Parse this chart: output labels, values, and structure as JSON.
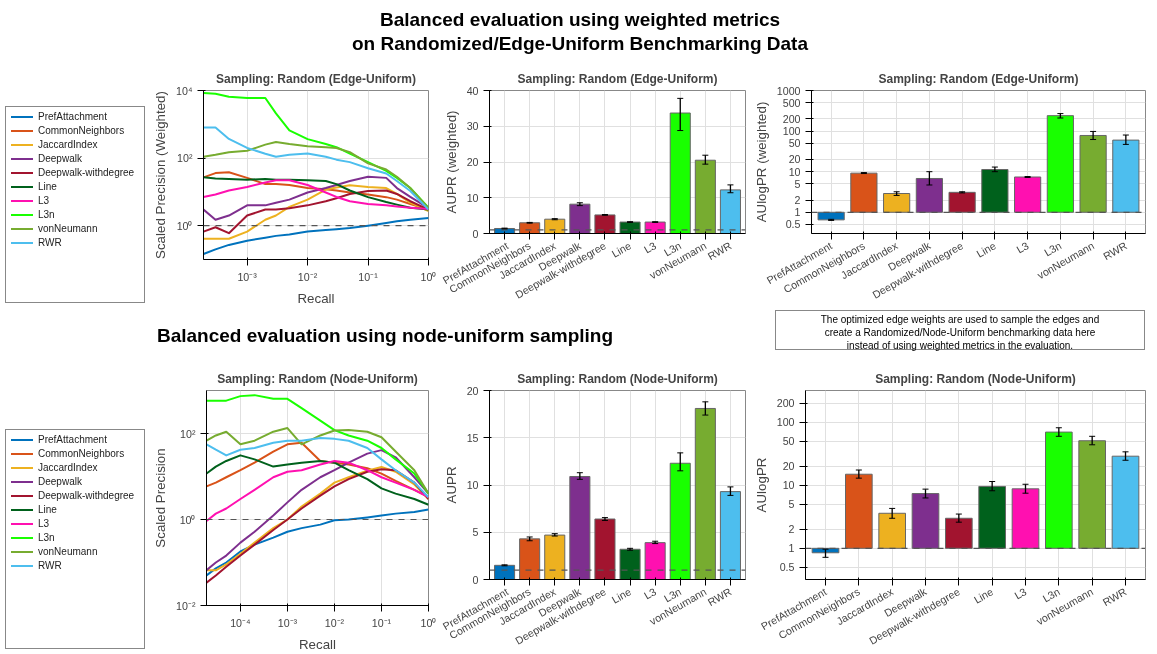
{
  "chart_data": [
    {
      "type": "line",
      "title": "Sampling: Random (Edge-Uniform)",
      "xlabel": "Recall",
      "ylabel": "Scaled Precision (Weighted)",
      "log": "xy",
      "grid": true,
      "legend": "left",
      "line_style": "solid",
      "xlim": [
        0.00019,
        1
      ],
      "ylim": [
        0.1,
        10000
      ],
      "xticks": [
        {
          "value": 0.001,
          "label": "10⁻³"
        },
        {
          "value": 0.01,
          "label": "10⁻²"
        },
        {
          "value": 0.1,
          "label": "10⁻¹"
        },
        {
          "value": 1,
          "label": "10⁰"
        }
      ],
      "yticks": [
        {
          "value": 1,
          "label": "10⁰"
        },
        {
          "value": 100,
          "label": "10²"
        },
        {
          "value": 10000,
          "label": "10⁴"
        }
      ],
      "x": [
        0.00019,
        0.0003,
        0.0005,
        0.001,
        0.002,
        0.003,
        0.005,
        0.01,
        0.02,
        0.03,
        0.05,
        0.1,
        0.2,
        0.3,
        0.5,
        1
      ],
      "ref_lines": [
        {
          "axis": "y",
          "value": 1,
          "color": "#555555",
          "line_style": "dashed"
        }
      ],
      "series": [
        {
          "name": "PrefAttachment",
          "color": "#0072bd",
          "values": [
            0.145,
            0.2,
            0.27,
            0.36,
            0.44,
            0.5,
            0.55,
            0.67,
            0.74,
            0.79,
            0.85,
            1,
            1.2,
            1.35,
            1.5,
            1.7
          ]
        },
        {
          "name": "CommonNeighbors",
          "color": "#d95319",
          "values": [
            27,
            36,
            38,
            26,
            17,
            17,
            16,
            13,
            12,
            11,
            9.6,
            8.4,
            7,
            5.9,
            4.4,
            3
          ]
        },
        {
          "name": "JaccardIndex",
          "color": "#edb120",
          "values": [
            0.41,
            0.41,
            0.41,
            0.67,
            1.5,
            2,
            3.6,
            5.9,
            11.7,
            13.4,
            15.7,
            14,
            13,
            8.7,
            4.8,
            2.7
          ]
        },
        {
          "name": "Deepwalk",
          "color": "#7e2f8e",
          "values": [
            3,
            1.5,
            2,
            4,
            4,
            4.8,
            5.9,
            9.6,
            13,
            16,
            21,
            28,
            26,
            13,
            7.1,
            3.3
          ]
        },
        {
          "name": "Deepwalk-withdegree",
          "color": "#a2142f",
          "values": [
            0.67,
            0.9,
            0.6,
            2,
            3,
            3,
            3.3,
            4,
            5.3,
            6.5,
            8.7,
            10.6,
            11,
            8.7,
            5.3,
            3
          ]
        },
        {
          "name": "Line",
          "color": "#00611c",
          "values": [
            27,
            25,
            24,
            23,
            24,
            23,
            23,
            22,
            21,
            17,
            11,
            7,
            5,
            4.2,
            3.4,
            3
          ]
        },
        {
          "name": "L3",
          "color": "#ff10b0",
          "values": [
            7.1,
            8.4,
            11,
            14,
            19,
            22,
            22,
            16,
            9.6,
            7.1,
            5.3,
            4.4,
            4,
            3.7,
            3.4,
            3.1
          ]
        },
        {
          "name": "L3n",
          "color": "#19ff00",
          "values": [
            8500,
            8000,
            6500,
            6000,
            6000,
            2100,
            660,
            365,
            260,
            210,
            137,
            76,
            42,
            26,
            13,
            3.4
          ]
        },
        {
          "name": "vonNeumann",
          "color": "#77ac30",
          "values": [
            110,
            125,
            150,
            165,
            250,
            300,
            260,
            225,
            210,
            200,
            150,
            70,
            46,
            28,
            13,
            3.3
          ]
        },
        {
          "name": "RWR",
          "color": "#4dbeee",
          "values": [
            800,
            800,
            370,
            200,
            135,
            110,
            125,
            137,
            110,
            90,
            76,
            50,
            35,
            21,
            10.6,
            3
          ]
        }
      ]
    },
    {
      "type": "bar",
      "title": "Sampling: Random (Edge-Uniform)",
      "ylabel": "AUPR (weighted)",
      "grid": true,
      "ylim": [
        0,
        40
      ],
      "yticks": [
        0,
        10,
        20,
        30,
        40
      ],
      "categories": [
        "PrefAttachment",
        "CommonNeighbors",
        "JaccardIndex",
        "Deepwalk",
        "Deepwalk-withdegree",
        "Line",
        "L3",
        "L3n",
        "vonNeumann",
        "RWR"
      ],
      "values": [
        1.4,
        3.0,
        4.0,
        8.2,
        5.2,
        3.2,
        3.2,
        33.7,
        20.5,
        12.2
      ],
      "errors": [
        [
          1.3,
          1.5
        ],
        [
          2.9,
          3.1
        ],
        [
          3.85,
          4.15
        ],
        [
          7.8,
          8.6
        ],
        [
          5.1,
          5.3
        ],
        [
          3.1,
          3.3
        ],
        [
          3.1,
          3.3
        ],
        [
          28.8,
          37.8
        ],
        [
          19.4,
          21.9
        ],
        [
          11.4,
          13.6
        ]
      ],
      "colors": [
        "#0072bd",
        "#d95319",
        "#edb120",
        "#7e2f8e",
        "#a2142f",
        "#00611c",
        "#ff10b0",
        "#19ff00",
        "#77ac30",
        "#4dbeee"
      ],
      "ref_lines": [
        {
          "axis": "y",
          "value": 1,
          "color": "#555555",
          "line_style": "dashed"
        }
      ]
    },
    {
      "type": "bar",
      "title": "Sampling: Random (Edge-Uniform)",
      "ylabel": "AUlogPR (weighted)",
      "grid": true,
      "log": true,
      "ylim": [
        0.3,
        1000
      ],
      "yticks": [
        0.5,
        1,
        2,
        5,
        10,
        20,
        50,
        100,
        200,
        500,
        1000
      ],
      "categories": [
        "PrefAttachment",
        "CommonNeighbors",
        "JaccardIndex",
        "Deepwalk",
        "Deepwalk-withdegree",
        "Line",
        "L3",
        "L3n",
        "vonNeumann",
        "RWR"
      ],
      "base": [
        1,
        1,
        1,
        1,
        1,
        1,
        1,
        1,
        1,
        1
      ],
      "values": [
        -0.35,
        8.2,
        1.9,
        5.8,
        2.1,
        10.3,
        6.4,
        239,
        77,
        59
      ],
      "errors": [
        [
          0.63,
          0.67
        ],
        [
          9.0,
          9.5
        ],
        [
          2.6,
          3.2
        ],
        [
          4.7,
          10
        ],
        [
          3.0,
          3.2
        ],
        [
          10,
          13
        ],
        [
          7.2,
          7.6
        ],
        [
          210,
          270
        ],
        [
          62,
          98
        ],
        [
          47,
          80
        ]
      ],
      "colors": [
        "#0072bd",
        "#d95319",
        "#edb120",
        "#7e2f8e",
        "#a2142f",
        "#00611c",
        "#ff10b0",
        "#19ff00",
        "#77ac30",
        "#4dbeee"
      ],
      "ref_lines": [
        {
          "axis": "y",
          "value": 1,
          "color": "#555555",
          "line_style": "dashed"
        }
      ]
    },
    {
      "type": "line",
      "title": "Sampling: Random (Node-Uniform)",
      "xlabel": "Recall",
      "ylabel": "Scaled Precision",
      "log": "xy",
      "grid": true,
      "legend": "left",
      "line_style": "solid",
      "xlim": [
        1.9e-05,
        1
      ],
      "ylim": [
        0.01,
        1000
      ],
      "xticks": [
        {
          "value": 0.0001,
          "label": "10⁻⁴"
        },
        {
          "value": 0.001,
          "label": "10⁻³"
        },
        {
          "value": 0.01,
          "label": "10⁻²"
        },
        {
          "value": 0.1,
          "label": "10⁻¹"
        },
        {
          "value": 1,
          "label": "10⁰"
        }
      ],
      "yticks": [
        {
          "value": 0.01,
          "label": "10⁻²"
        },
        {
          "value": 1,
          "label": "10⁰"
        },
        {
          "value": 100,
          "label": "10²"
        }
      ],
      "x": [
        1.9e-05,
        3e-05,
        5e-05,
        0.0001,
        0.0002,
        0.0005,
        0.001,
        0.002,
        0.005,
        0.01,
        0.02,
        0.05,
        0.1,
        0.2,
        0.5,
        1
      ],
      "ref_lines": [
        {
          "axis": "y",
          "value": 1,
          "color": "#555555",
          "line_style": "dashed"
        }
      ],
      "series": [
        {
          "name": "PrefAttachment",
          "color": "#0072bd",
          "values": [
            0.05,
            0.073,
            0.1,
            0.18,
            0.26,
            0.38,
            0.52,
            0.63,
            0.76,
            0.96,
            1,
            1.12,
            1.24,
            1.37,
            1.5,
            1.7
          ]
        },
        {
          "name": "CommonNeighbors",
          "color": "#d95319",
          "values": [
            5.9,
            7.2,
            9.6,
            14,
            21,
            38,
            56,
            61,
            23,
            21,
            19,
            15.6,
            11.7,
            7.9,
            4.9,
            3.3
          ]
        },
        {
          "name": "JaccardIndex",
          "color": "#edb120",
          "values": [
            0.066,
            0.066,
            0.09,
            0.16,
            0.29,
            0.63,
            1,
            2,
            4,
            7.2,
            9.6,
            13.6,
            16.6,
            12.9,
            6.5,
            3
          ]
        },
        {
          "name": "Deepwalk",
          "color": "#7e2f8e",
          "values": [
            0.066,
            0.1,
            0.145,
            0.29,
            0.52,
            1.24,
            2.5,
            4.9,
            9.6,
            14,
            21,
            34,
            41,
            28,
            9.6,
            4
          ]
        },
        {
          "name": "Deepwalk-withdegree",
          "color": "#a2142f",
          "values": [
            0.034,
            0.05,
            0.08,
            0.145,
            0.26,
            0.57,
            1,
            1.8,
            3.6,
            5.9,
            8.7,
            12.9,
            14.8,
            14,
            7.2,
            3
          ]
        },
        {
          "name": "Line",
          "color": "#00611c",
          "values": [
            11.7,
            17,
            23,
            31,
            25,
            17,
            19,
            21,
            23,
            21,
            14,
            8.7,
            5.3,
            4,
            3,
            2.2
          ]
        },
        {
          "name": "L3",
          "color": "#ff10b0",
          "values": [
            0.92,
            1.37,
            1.8,
            3,
            4.9,
            9.6,
            12.9,
            14,
            19,
            23,
            21,
            14,
            9.6,
            7.2,
            4.9,
            3.3
          ]
        },
        {
          "name": "L3n",
          "color": "#19ff00",
          "values": [
            580,
            580,
            580,
            740,
            780,
            640,
            640,
            390,
            200,
            120,
            90,
            68,
            46,
            25,
            11.7,
            4
          ]
        },
        {
          "name": "vonNeumann",
          "color": "#77ac30",
          "values": [
            68,
            90,
            110,
            56,
            68,
            110,
            134,
            56,
            90,
            117,
            120,
            110,
            82,
            38,
            14,
            4
          ]
        },
        {
          "name": "RWR",
          "color": "#4dbeee",
          "values": [
            56,
            42,
            31,
            42,
            46,
            61,
            68,
            68,
            79,
            75,
            68,
            46,
            25,
            14,
            7.2,
            3.3
          ]
        }
      ]
    },
    {
      "type": "bar",
      "title": "Sampling: Random (Node-Uniform)",
      "ylabel": "AUPR",
      "grid": true,
      "ylim": [
        0,
        20
      ],
      "yticks": [
        0,
        5,
        10,
        15,
        20
      ],
      "categories": [
        "PrefAttachment",
        "CommonNeighbors",
        "JaccardIndex",
        "Deepwalk",
        "Deepwalk-withdegree",
        "Line",
        "L3",
        "L3n",
        "vonNeumann",
        "RWR"
      ],
      "values": [
        1.5,
        4.3,
        4.7,
        10.9,
        6.4,
        3.2,
        3.9,
        12.3,
        18.1,
        9.3
      ],
      "errors": [
        [
          1.45,
          1.55
        ],
        [
          4.1,
          4.5
        ],
        [
          4.6,
          4.85
        ],
        [
          10.6,
          11.3
        ],
        [
          6.25,
          6.55
        ],
        [
          3.1,
          3.3
        ],
        [
          3.8,
          4.05
        ],
        [
          11.5,
          13.4
        ],
        [
          17.4,
          18.8
        ],
        [
          8.9,
          9.8
        ]
      ],
      "colors": [
        "#0072bd",
        "#d95319",
        "#edb120",
        "#7e2f8e",
        "#a2142f",
        "#00611c",
        "#ff10b0",
        "#19ff00",
        "#77ac30",
        "#4dbeee"
      ],
      "ref_lines": [
        {
          "axis": "y",
          "value": 1,
          "color": "#555555",
          "line_style": "dashed"
        }
      ]
    },
    {
      "type": "bar",
      "title": "Sampling: Random (Node-Uniform)",
      "ylabel": "AUlogPR",
      "grid": true,
      "log": true,
      "ylim": [
        0.32,
        320
      ],
      "yticks": [
        0.5,
        1,
        2,
        5,
        10,
        20,
        50,
        100,
        200
      ],
      "categories": [
        "PrefAttachment",
        "CommonNeighbors",
        "JaccardIndex",
        "Deepwalk",
        "Deepwalk-withdegree",
        "Line",
        "L3",
        "L3n",
        "vonNeumann",
        "RWR"
      ],
      "base": [
        1,
        1,
        1,
        1,
        1,
        1,
        1,
        1,
        1,
        1
      ],
      "values": [
        -0.15,
        14,
        2.6,
        6.4,
        2.0,
        8.6,
        7.8,
        69,
        50,
        28
      ],
      "errors": [
        [
          0.72,
          0.97
        ],
        [
          13,
          17.5
        ],
        [
          3.0,
          4.3
        ],
        [
          6.3,
          8.7
        ],
        [
          2.6,
          3.5
        ],
        [
          8.2,
          11.5
        ],
        [
          7.5,
          10.4
        ],
        [
          60,
          82
        ],
        [
          44,
          60
        ],
        [
          25,
          34
        ]
      ],
      "colors": [
        "#0072bd",
        "#d95319",
        "#edb120",
        "#7e2f8e",
        "#a2142f",
        "#00611c",
        "#ff10b0",
        "#19ff00",
        "#77ac30",
        "#4dbeee"
      ],
      "ref_lines": [
        {
          "axis": "y",
          "value": 1,
          "color": "#555555",
          "line_style": "dashed"
        }
      ]
    },
    {
      "type": "other",
      "title": "Balanced evaluation using weighted metrics\non Randomized/Edge-Uniform Benchmarking Data"
    },
    {
      "type": "other",
      "title": "Balanced evaluation using node-uniform sampling",
      "annotations": [
        "The optimized edge weights are used to sample the edges and\ncreate a Randomized/Node-Uniform benchmarking data here\ninstead of using weighted metrics in the evaluation."
      ]
    }
  ]
}
